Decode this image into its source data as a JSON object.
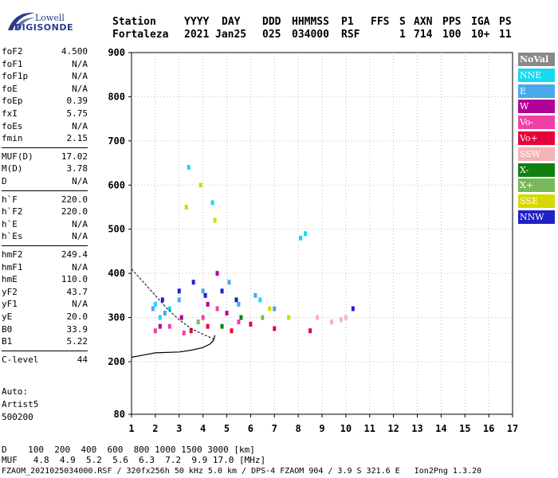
{
  "logo": {
    "line1": "Lowell",
    "line2": "DIGISONDE"
  },
  "header": {
    "labels": [
      "Station",
      "YYYY",
      "DAY",
      "DDD",
      "HHMMSS",
      "P1",
      "FFS",
      "S",
      "AXN",
      "PPS",
      "IGA",
      "PS"
    ],
    "values": [
      "Fortaleza",
      "2021",
      "Jan25",
      "025",
      "034000",
      "RSF",
      "",
      "1",
      "714",
      "100",
      "10+",
      "11"
    ]
  },
  "parameters": [
    {
      "group": [
        {
          "name": "foF2",
          "value": "4.500"
        },
        {
          "name": "foF1",
          "value": "N/A"
        },
        {
          "name": "foF1p",
          "value": "N/A"
        },
        {
          "name": "foE",
          "value": "N/A"
        },
        {
          "name": "foEp",
          "value": "0.39"
        },
        {
          "name": "fxI",
          "value": "5.75"
        },
        {
          "name": "foEs",
          "value": "N/A"
        },
        {
          "name": "fmin",
          "value": "2.15"
        }
      ]
    },
    {
      "group": [
        {
          "name": "MUF(D)",
          "value": "17.02"
        },
        {
          "name": "M(D)",
          "value": "3.78"
        },
        {
          "name": "D",
          "value": "N/A"
        }
      ]
    },
    {
      "group": [
        {
          "name": "h`F",
          "value": "220.0"
        },
        {
          "name": "h`F2",
          "value": "220.0"
        },
        {
          "name": "h`E",
          "value": "N/A"
        },
        {
          "name": "h`Es",
          "value": "N/A"
        }
      ]
    },
    {
      "group": [
        {
          "name": "hmF2",
          "value": "249.4"
        },
        {
          "name": "hmF1",
          "value": "N/A"
        },
        {
          "name": "hmE",
          "value": "110.0"
        },
        {
          "name": "yF2",
          "value": "43.7"
        },
        {
          "name": "yF1",
          "value": "N/A"
        },
        {
          "name": "yE",
          "value": "20.0"
        },
        {
          "name": "B0",
          "value": "33.9"
        },
        {
          "name": "B1",
          "value": "5.22"
        }
      ]
    },
    {
      "group": [
        {
          "name": "C-level",
          "value": "44"
        }
      ]
    }
  ],
  "auto": {
    "line1": "Auto:",
    "line2": "Artist5",
    "line3": "500200"
  },
  "legend": [
    {
      "label": "NoVal",
      "color": "#888888"
    },
    {
      "label": "NNE",
      "color": "#18d8f0"
    },
    {
      "label": "E",
      "color": "#4aa8ee"
    },
    {
      "label": "W",
      "color": "#b0009a"
    },
    {
      "label": "Vo-",
      "color": "#f040a8"
    },
    {
      "label": "Vo+",
      "color": "#e8003a"
    },
    {
      "label": "SSW",
      "color": "#f5b4b4"
    },
    {
      "label": "X-",
      "color": "#108010"
    },
    {
      "label": "X+",
      "color": "#78b858"
    },
    {
      "label": "SSE",
      "color": "#d8d800"
    },
    {
      "label": "NNW",
      "color": "#2020c8"
    }
  ],
  "chart_data": {
    "type": "scatter",
    "title": "",
    "xlabel": "",
    "ylabel": "",
    "xlim": [
      1,
      17
    ],
    "ylim": [
      80,
      900
    ],
    "x_ticks": [
      1,
      2,
      3,
      4,
      5,
      6,
      7,
      8,
      9,
      10,
      11,
      12,
      13,
      14,
      15,
      16,
      17
    ],
    "y_ticks": [
      80,
      200,
      300,
      400,
      500,
      600,
      700,
      800,
      900
    ],
    "grid": true,
    "series": [
      {
        "name": "NNE",
        "color": "#18d8f0",
        "points": [
          [
            2.0,
            330
          ],
          [
            2.2,
            300
          ],
          [
            3.4,
            640
          ],
          [
            4.4,
            560
          ],
          [
            8.1,
            480
          ],
          [
            8.3,
            490
          ],
          [
            2.6,
            320
          ],
          [
            6.4,
            340
          ]
        ]
      },
      {
        "name": "E",
        "color": "#4aa8ee",
        "points": [
          [
            1.9,
            320
          ],
          [
            2.4,
            310
          ],
          [
            3.0,
            340
          ],
          [
            4.0,
            360
          ],
          [
            5.1,
            380
          ],
          [
            5.5,
            330
          ],
          [
            6.2,
            350
          ],
          [
            7.0,
            320
          ]
        ]
      },
      {
        "name": "W",
        "color": "#b0009a",
        "points": [
          [
            2.2,
            280
          ],
          [
            3.1,
            300
          ],
          [
            4.2,
            330
          ],
          [
            4.6,
            400
          ],
          [
            5.0,
            310
          ]
        ]
      },
      {
        "name": "Vo-",
        "color": "#f040a8",
        "points": [
          [
            2.0,
            270
          ],
          [
            2.6,
            280
          ],
          [
            3.2,
            265
          ],
          [
            4.0,
            300
          ],
          [
            4.6,
            320
          ],
          [
            5.5,
            290
          ]
        ]
      },
      {
        "name": "Vo+",
        "color": "#e8003a",
        "points": [
          [
            3.5,
            270
          ],
          [
            4.2,
            280
          ],
          [
            5.2,
            270
          ],
          [
            6.0,
            285
          ],
          [
            7.0,
            275
          ],
          [
            8.5,
            270
          ]
        ]
      },
      {
        "name": "SSW",
        "color": "#f5b4b4",
        "points": [
          [
            8.8,
            300
          ],
          [
            9.4,
            290
          ],
          [
            9.8,
            295
          ],
          [
            10.0,
            300
          ]
        ]
      },
      {
        "name": "X-",
        "color": "#108010",
        "points": [
          [
            4.8,
            280
          ],
          [
            5.6,
            300
          ]
        ]
      },
      {
        "name": "X+",
        "color": "#78b858",
        "points": [
          [
            3.8,
            290
          ],
          [
            6.5,
            300
          ]
        ]
      },
      {
        "name": "SSE",
        "color": "#d8d800",
        "points": [
          [
            3.3,
            550
          ],
          [
            3.9,
            600
          ],
          [
            4.5,
            520
          ],
          [
            6.8,
            320
          ],
          [
            7.6,
            300
          ]
        ]
      },
      {
        "name": "NNW",
        "color": "#2020c8",
        "points": [
          [
            2.3,
            340
          ],
          [
            3.0,
            360
          ],
          [
            3.6,
            380
          ],
          [
            4.1,
            350
          ],
          [
            4.8,
            360
          ],
          [
            5.4,
            340
          ],
          [
            10.3,
            320
          ]
        ]
      }
    ],
    "trace": {
      "points": [
        [
          1.0,
          210
        ],
        [
          1.5,
          215
        ],
        [
          2.0,
          220
        ],
        [
          3.0,
          222
        ],
        [
          3.5,
          226
        ],
        [
          4.0,
          232
        ],
        [
          4.3,
          240
        ],
        [
          4.45,
          249
        ],
        [
          4.5,
          260
        ]
      ]
    },
    "profile": {
      "points": [
        [
          1.0,
          410
        ],
        [
          1.5,
          380
        ],
        [
          2.0,
          350
        ],
        [
          2.5,
          320
        ],
        [
          3.0,
          295
        ],
        [
          3.5,
          275
        ],
        [
          4.0,
          262
        ],
        [
          4.3,
          255
        ],
        [
          4.5,
          249
        ]
      ]
    }
  },
  "bottom": {
    "d_row": "D    100  200  400  600  800 1000 1500 3000 [km]",
    "muf_row": "MUF   4.8  4.9  5.2  5.6  6.3  7.2  9.9 17.0 [MHz]",
    "footer": "FZAOM_2021025034000.RSF / 320fx256h 50 kHz 5.0 km / DPS-4 FZAOM 904 / 3.9 S 321.6 E   Ion2Png 1.3.20"
  }
}
